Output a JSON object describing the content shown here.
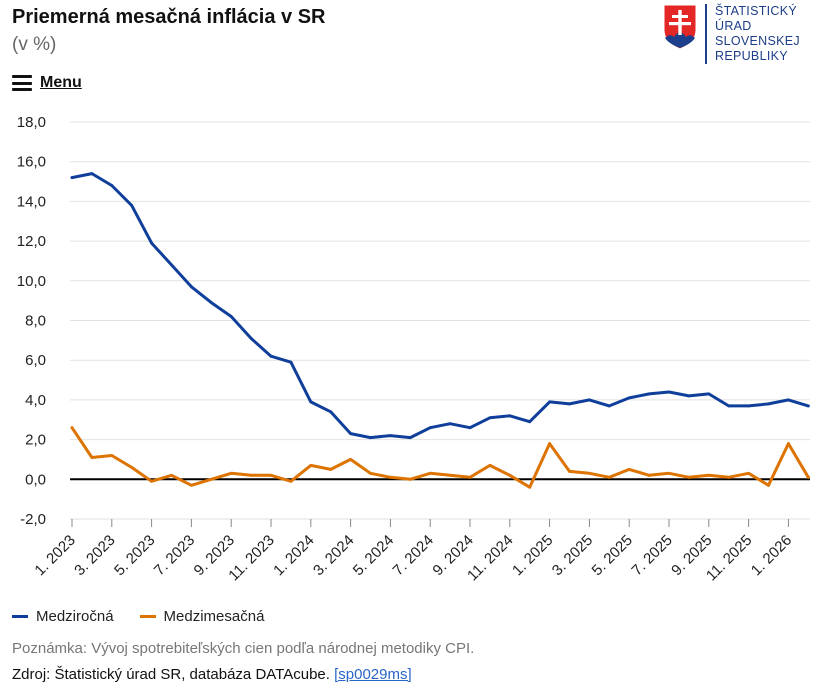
{
  "header": {
    "title": "Priemerná mesačná inflácia v SR",
    "subtitle": "(v %)",
    "menu_label": "Menu"
  },
  "logo": {
    "lines": [
      "ŠTATISTICKÝ",
      "ÚRAD",
      "SLOVENSKEJ",
      "REPUBLIKY"
    ],
    "icon": "slovak-coat-of-arms-icon"
  },
  "colors": {
    "series1": "#0f3f9a",
    "series2": "#dd7300",
    "grid": "#e2e2e2",
    "zero_line": "#000000",
    "logo_blue": "#1d3e8a",
    "logo_red": "#e32726"
  },
  "chart_data": {
    "type": "line",
    "title": "Priemerná mesačná inflácia v SR",
    "subtitle": "(v %)",
    "ylim": [
      -2,
      18
    ],
    "yticks": [
      "-2,0",
      "0,0",
      "2,0",
      "4,0",
      "6,0",
      "8,0",
      "10,0",
      "12,0",
      "14,0",
      "16,0",
      "18,0"
    ],
    "x": [
      "1. 2023",
      "2. 2023",
      "3. 2023",
      "4. 2023",
      "5. 2023",
      "6. 2023",
      "7. 2023",
      "8. 2023",
      "9. 2023",
      "10. 2023",
      "11. 2023",
      "12. 2023",
      "1. 2024",
      "2. 2024",
      "3. 2024",
      "4. 2024",
      "5. 2024",
      "6. 2024",
      "7. 2024",
      "8. 2024",
      "9. 2024",
      "10. 2024",
      "11. 2024",
      "12. 2024",
      "1. 2025",
      "2. 2025",
      "3. 2025",
      "4. 2025",
      "5. 2025",
      "6. 2025",
      "7. 2025",
      "8. 2025",
      "9. 2025",
      "10. 2025",
      "11. 2025",
      "12. 2025",
      "1. 2026",
      "2. 2026"
    ],
    "xtick_labels": [
      "1. 2023",
      "3. 2023",
      "5. 2023",
      "7. 2023",
      "9. 2023",
      "11. 2023",
      "1. 2024",
      "3. 2024",
      "5. 2024",
      "7. 2024",
      "9. 2024",
      "11. 2024",
      "1. 2025",
      "3. 2025",
      "5. 2025",
      "7. 2025",
      "9. 2025",
      "11. 2025",
      "1. 2026"
    ],
    "grid": true,
    "legend_position": "bottom-left",
    "series": [
      {
        "name": "Medziročná",
        "values": [
          15.2,
          15.4,
          14.8,
          13.8,
          11.9,
          10.8,
          9.7,
          8.9,
          8.2,
          7.1,
          6.2,
          5.9,
          3.9,
          3.4,
          2.3,
          2.1,
          2.2,
          2.1,
          2.6,
          2.8,
          2.6,
          3.1,
          3.2,
          2.9,
          3.9,
          3.8,
          4.0,
          3.7,
          4.1,
          4.3,
          4.4,
          4.2,
          4.3,
          3.7,
          3.7,
          3.8,
          4.0,
          3.7
        ]
      },
      {
        "name": "Medzimesačná",
        "values": [
          2.6,
          1.1,
          1.2,
          0.6,
          -0.1,
          0.2,
          -0.3,
          0.0,
          0.3,
          0.2,
          0.2,
          -0.1,
          0.7,
          0.5,
          1.0,
          0.3,
          0.1,
          0.0,
          0.3,
          0.2,
          0.1,
          0.7,
          0.2,
          -0.4,
          1.8,
          0.4,
          0.3,
          0.1,
          0.5,
          0.2,
          0.3,
          0.1,
          0.2,
          0.1,
          0.3,
          -0.3,
          1.8,
          0.1
        ]
      }
    ]
  },
  "footer": {
    "note": "Poznámka: Vývoj spotrebiteľských cien podľa národnej metodiky CPI.",
    "source_text": "Zdroj: Štatistický úrad SR, databáza DATAcube.",
    "source_link": "[sp0029ms]"
  }
}
